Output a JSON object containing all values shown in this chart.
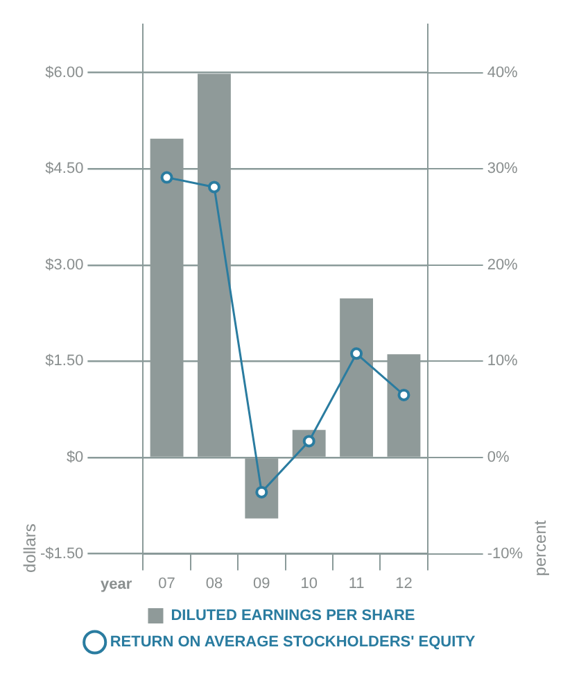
{
  "chart_data": {
    "type": "bar",
    "categories": [
      "07",
      "08",
      "09",
      "10",
      "11",
      "12"
    ],
    "xlabel": "year",
    "ylabel": "dollars",
    "y2label": "percent",
    "series": [
      {
        "name": "DILUTED EARNINGS PER SHARE",
        "color": "#8f9a99",
        "values": [
          4.97,
          5.98,
          -0.95,
          0.43,
          2.48,
          1.61
        ]
      },
      {
        "name": "RETURN ON AVERAGE STOCKHOLDERS' EQUITY",
        "type": "line",
        "axis": "y2",
        "color": "#2a7ca0",
        "values": [
          29.1,
          28.1,
          -3.6,
          1.7,
          10.8,
          6.5
        ]
      }
    ],
    "ylim": [
      -1.5,
      6.75
    ],
    "yticks": [
      {
        "value": -1.5,
        "label": "-$1.50"
      },
      {
        "value": 0,
        "label": "$0"
      },
      {
        "value": 1.5,
        "label": "$1.50"
      },
      {
        "value": 3,
        "label": "$3.00"
      },
      {
        "value": 4.5,
        "label": "$4.50"
      },
      {
        "value": 6,
        "label": "$6.00"
      }
    ],
    "y2lim": [
      -10,
      45
    ],
    "y2ticks": [
      {
        "value": -10,
        "label": "-10%"
      },
      {
        "value": 0,
        "label": "0%"
      },
      {
        "value": 10,
        "label": "10%"
      },
      {
        "value": 20,
        "label": "20%"
      },
      {
        "value": 30,
        "label": "30%"
      },
      {
        "value": 40,
        "label": "40%"
      }
    ],
    "grid": "y",
    "legend": "bottom",
    "marker": "circle",
    "line_style": "solid"
  }
}
